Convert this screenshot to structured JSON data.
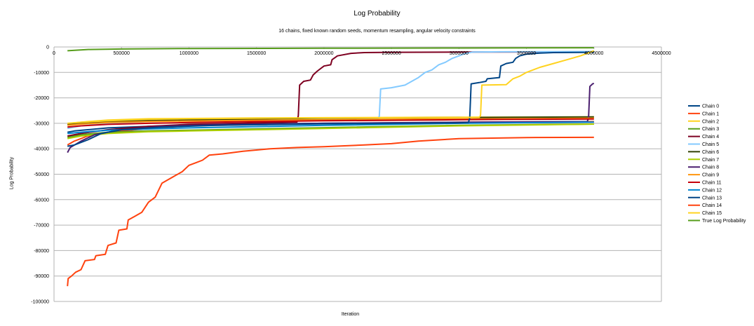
{
  "chart_data": {
    "type": "line",
    "title": "Log Probability",
    "subtitle": "16 chains, fixed known random seeds, momentum resampling, angular velocity constraints",
    "xlabel": "Iteration",
    "ylabel": "Log Probability",
    "xlim": [
      0,
      4500000
    ],
    "ylim": [
      -100000,
      0
    ],
    "x_ticks": [
      "0",
      "500000",
      "1000000",
      "1500000",
      "2000000",
      "2500000",
      "3000000",
      "3500000",
      "4000000",
      "4500000"
    ],
    "y_ticks": [
      "0",
      "-10000",
      "-20000",
      "-30000",
      "-40000",
      "-50000",
      "-60000",
      "-70000",
      "-80000",
      "-90000",
      "-100000"
    ],
    "grid": "horizontal",
    "legend_position": "right",
    "series": [
      {
        "name": "Chain 0",
        "color": "#004586",
        "points": [
          [
            100000,
            -33500
          ],
          [
            150000,
            -33000
          ],
          [
            250000,
            -32500
          ],
          [
            400000,
            -31800
          ],
          [
            700000,
            -31200
          ],
          [
            1000000,
            -30800
          ],
          [
            1500000,
            -30300
          ],
          [
            2000000,
            -30000
          ],
          [
            3000000,
            -29700
          ],
          [
            4000000,
            -29400
          ]
        ]
      },
      {
        "name": "Chain 1",
        "color": "#ff420e",
        "points": [
          [
            100000,
            -38500
          ],
          [
            150000,
            -37000
          ],
          [
            250000,
            -35000
          ],
          [
            400000,
            -33500
          ],
          [
            700000,
            -32000
          ],
          [
            1000000,
            -31000
          ],
          [
            1500000,
            -30500
          ],
          [
            2000000,
            -30100
          ],
          [
            3000000,
            -29600
          ],
          [
            4000000,
            -29300
          ]
        ]
      },
      {
        "name": "Chain 2",
        "color": "#ffd320",
        "points": [
          [
            100000,
            -30200
          ],
          [
            150000,
            -29800
          ],
          [
            250000,
            -29300
          ],
          [
            400000,
            -28700
          ],
          [
            700000,
            -28200
          ],
          [
            1000000,
            -28100
          ],
          [
            1500000,
            -27900
          ],
          [
            2000000,
            -27800
          ],
          [
            3000000,
            -27600
          ],
          [
            4000000,
            -27500
          ]
        ]
      },
      {
        "name": "Chain 3",
        "color": "#579d1c",
        "points": [
          [
            100000,
            -35500
          ],
          [
            200000,
            -34500
          ],
          [
            400000,
            -33500
          ],
          [
            700000,
            -33000
          ],
          [
            1000000,
            -32700
          ],
          [
            1500000,
            -32200
          ],
          [
            2000000,
            -31700
          ],
          [
            3000000,
            -30800
          ],
          [
            4000000,
            -30300
          ]
        ]
      },
      {
        "name": "Chain 4",
        "color": "#7e0021",
        "points": [
          [
            100000,
            -35000
          ],
          [
            200000,
            -34000
          ],
          [
            400000,
            -32500
          ],
          [
            700000,
            -31200
          ],
          [
            1000000,
            -30400
          ],
          [
            1500000,
            -29800
          ],
          [
            1800000,
            -29500
          ],
          [
            1810000,
            -27000
          ],
          [
            1820000,
            -15000
          ],
          [
            1850000,
            -13500
          ],
          [
            1900000,
            -13000
          ],
          [
            1920000,
            -11000
          ],
          [
            1950000,
            -9500
          ],
          [
            2000000,
            -7500
          ],
          [
            2050000,
            -7000
          ],
          [
            2060000,
            -5000
          ],
          [
            2100000,
            -3500
          ],
          [
            2200000,
            -2500
          ],
          [
            2300000,
            -2200
          ],
          [
            2500000,
            -2100
          ],
          [
            3000000,
            -2000
          ],
          [
            4000000,
            -1900
          ]
        ]
      },
      {
        "name": "Chain 5",
        "color": "#83caff",
        "points": [
          [
            100000,
            -32000
          ],
          [
            200000,
            -31000
          ],
          [
            400000,
            -30000
          ],
          [
            700000,
            -29300
          ],
          [
            1000000,
            -29000
          ],
          [
            1500000,
            -28600
          ],
          [
            2000000,
            -28300
          ],
          [
            2400000,
            -28100
          ],
          [
            2410000,
            -27200
          ],
          [
            2420000,
            -16500
          ],
          [
            2500000,
            -16000
          ],
          [
            2600000,
            -15000
          ],
          [
            2650000,
            -13500
          ],
          [
            2700000,
            -12000
          ],
          [
            2750000,
            -10000
          ],
          [
            2800000,
            -9000
          ],
          [
            2850000,
            -7000
          ],
          [
            2900000,
            -6000
          ],
          [
            2950000,
            -4500
          ],
          [
            3000000,
            -3500
          ],
          [
            3050000,
            -2500
          ],
          [
            3100000,
            -2000
          ],
          [
            3300000,
            -1900
          ],
          [
            4000000,
            -1800
          ]
        ]
      },
      {
        "name": "Chain 6",
        "color": "#314004",
        "points": [
          [
            100000,
            -30500
          ],
          [
            200000,
            -30000
          ],
          [
            400000,
            -29400
          ],
          [
            700000,
            -28800
          ],
          [
            1000000,
            -28600
          ],
          [
            1500000,
            -28300
          ],
          [
            2000000,
            -28000
          ],
          [
            3000000,
            -27700
          ],
          [
            4000000,
            -27500
          ]
        ]
      },
      {
        "name": "Chain 7",
        "color": "#aecf00",
        "points": [
          [
            100000,
            -36000
          ],
          [
            200000,
            -35000
          ],
          [
            400000,
            -34000
          ],
          [
            700000,
            -33300
          ],
          [
            1000000,
            -33000
          ],
          [
            1500000,
            -32500
          ],
          [
            2000000,
            -32000
          ],
          [
            3000000,
            -31000
          ],
          [
            4000000,
            -30300
          ]
        ]
      },
      {
        "name": "Chain 8",
        "color": "#4b1f6f",
        "points": [
          [
            100000,
            -41500
          ],
          [
            120000,
            -39500
          ],
          [
            200000,
            -37000
          ],
          [
            300000,
            -34500
          ],
          [
            500000,
            -32500
          ],
          [
            800000,
            -31200
          ],
          [
            1200000,
            -30500
          ],
          [
            2000000,
            -30000
          ],
          [
            3000000,
            -29600
          ],
          [
            3950000,
            -29300
          ],
          [
            3960000,
            -28000
          ],
          [
            3970000,
            -15500
          ],
          [
            3990000,
            -14500
          ],
          [
            4000000,
            -14300
          ]
        ]
      },
      {
        "name": "Chain 9",
        "color": "#ff950e",
        "points": [
          [
            100000,
            -30800
          ],
          [
            200000,
            -30300
          ],
          [
            400000,
            -29700
          ],
          [
            700000,
            -29300
          ],
          [
            1000000,
            -29100
          ],
          [
            1500000,
            -28800
          ],
          [
            2000000,
            -28600
          ],
          [
            3000000,
            -28300
          ],
          [
            4000000,
            -28000
          ]
        ]
      },
      {
        "name": "Chain 11",
        "color": "#c5000b",
        "points": [
          [
            100000,
            -31500
          ],
          [
            200000,
            -31000
          ],
          [
            400000,
            -30400
          ],
          [
            700000,
            -30000
          ],
          [
            1000000,
            -29700
          ],
          [
            1500000,
            -29300
          ],
          [
            2000000,
            -29000
          ],
          [
            3000000,
            -28600
          ],
          [
            4000000,
            -28300
          ]
        ]
      },
      {
        "name": "Chain 12",
        "color": "#0084d1",
        "points": [
          [
            100000,
            -34000
          ],
          [
            200000,
            -33500
          ],
          [
            400000,
            -32700
          ],
          [
            700000,
            -32200
          ],
          [
            1000000,
            -31800
          ],
          [
            1500000,
            -31300
          ],
          [
            2000000,
            -30800
          ],
          [
            3000000,
            -30000
          ],
          [
            4000000,
            -29500
          ]
        ]
      },
      {
        "name": "Chain 13",
        "color": "#004586",
        "points": [
          [
            100000,
            -39000
          ],
          [
            150000,
            -38500
          ],
          [
            250000,
            -36500
          ],
          [
            350000,
            -34000
          ],
          [
            500000,
            -32500
          ],
          [
            800000,
            -31500
          ],
          [
            1200000,
            -30800
          ],
          [
            2000000,
            -30200
          ],
          [
            3000000,
            -29800
          ],
          [
            3070000,
            -29700
          ],
          [
            3080000,
            -28000
          ],
          [
            3090000,
            -14500
          ],
          [
            3150000,
            -14000
          ],
          [
            3200000,
            -13500
          ],
          [
            3210000,
            -12500
          ],
          [
            3300000,
            -12000
          ],
          [
            3310000,
            -7500
          ],
          [
            3350000,
            -6500
          ],
          [
            3400000,
            -6000
          ],
          [
            3420000,
            -4500
          ],
          [
            3450000,
            -3500
          ],
          [
            3500000,
            -2800
          ],
          [
            3600000,
            -2400
          ],
          [
            3700000,
            -2200
          ],
          [
            4000000,
            -2100
          ]
        ]
      },
      {
        "name": "Chain 14",
        "color": "#ff420e",
        "points": [
          [
            100000,
            -94000
          ],
          [
            105000,
            -91000
          ],
          [
            130000,
            -90000
          ],
          [
            160000,
            -88500
          ],
          [
            200000,
            -87500
          ],
          [
            230000,
            -84000
          ],
          [
            300000,
            -83500
          ],
          [
            310000,
            -82000
          ],
          [
            380000,
            -81500
          ],
          [
            400000,
            -78000
          ],
          [
            460000,
            -77000
          ],
          [
            480000,
            -72000
          ],
          [
            540000,
            -71500
          ],
          [
            550000,
            -68000
          ],
          [
            600000,
            -66500
          ],
          [
            650000,
            -65000
          ],
          [
            700000,
            -61000
          ],
          [
            750000,
            -59000
          ],
          [
            800000,
            -53500
          ],
          [
            850000,
            -52000
          ],
          [
            900000,
            -50500
          ],
          [
            950000,
            -49000
          ],
          [
            1000000,
            -46500
          ],
          [
            1050000,
            -45500
          ],
          [
            1100000,
            -44500
          ],
          [
            1150000,
            -42500
          ],
          [
            1250000,
            -42000
          ],
          [
            1400000,
            -41000
          ],
          [
            1600000,
            -40000
          ],
          [
            1800000,
            -39500
          ],
          [
            2000000,
            -39200
          ],
          [
            2300000,
            -38500
          ],
          [
            2500000,
            -38000
          ],
          [
            2700000,
            -37000
          ],
          [
            3000000,
            -36000
          ],
          [
            3500000,
            -35600
          ],
          [
            4000000,
            -35500
          ]
        ]
      },
      {
        "name": "Chain 15",
        "color": "#ffd320",
        "points": [
          [
            100000,
            -30000
          ],
          [
            200000,
            -29600
          ],
          [
            400000,
            -29000
          ],
          [
            700000,
            -28400
          ],
          [
            1000000,
            -28200
          ],
          [
            1500000,
            -28000
          ],
          [
            2000000,
            -27900
          ],
          [
            3000000,
            -27700
          ],
          [
            3150000,
            -27600
          ],
          [
            3160000,
            -27000
          ],
          [
            3170000,
            -15000
          ],
          [
            3350000,
            -14800
          ],
          [
            3400000,
            -12500
          ],
          [
            3450000,
            -11500
          ],
          [
            3500000,
            -10000
          ],
          [
            3600000,
            -8000
          ],
          [
            3700000,
            -6500
          ],
          [
            3800000,
            -5000
          ],
          [
            3900000,
            -3500
          ],
          [
            3950000,
            -2500
          ],
          [
            4000000,
            -1500
          ]
        ]
      },
      {
        "name": "True Log Probability",
        "color": "#579d1c",
        "points": [
          [
            100000,
            -1500
          ],
          [
            250000,
            -1000
          ],
          [
            500000,
            -800
          ],
          [
            1000000,
            -600
          ],
          [
            2000000,
            -500
          ],
          [
            3000000,
            -400
          ],
          [
            4000000,
            -300
          ]
        ]
      }
    ]
  }
}
